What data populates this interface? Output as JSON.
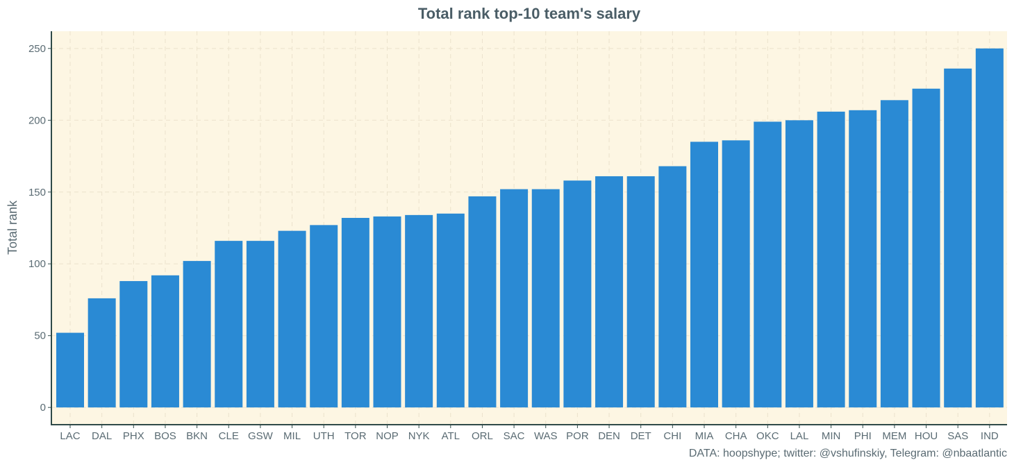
{
  "colors": {
    "panel_background": "#fdf6e3",
    "bar": "#2a8ad4",
    "axis": "#2f4a48",
    "text": "#5a6b73",
    "grid": "#ebe2cc"
  },
  "chart_data": {
    "type": "bar",
    "title": "Total rank top-10 team's salary",
    "xlabel": "",
    "ylabel": "Total rank",
    "caption": "DATA: hoopshype; twitter: @vshufinskiy, Telegram: @nbaatlantic",
    "ylim": [
      -12,
      262
    ],
    "yticks": [
      0,
      50,
      100,
      150,
      200,
      250
    ],
    "grid": true,
    "legend": "none",
    "categories": [
      "LAC",
      "DAL",
      "PHX",
      "BOS",
      "BKN",
      "CLE",
      "GSW",
      "MIL",
      "UTH",
      "TOR",
      "NOP",
      "NYK",
      "ATL",
      "ORL",
      "SAC",
      "WAS",
      "POR",
      "DEN",
      "DET",
      "CHI",
      "MIA",
      "CHA",
      "OKC",
      "LAL",
      "MIN",
      "PHI",
      "MEM",
      "HOU",
      "SAS",
      "IND"
    ],
    "values": [
      52,
      76,
      88,
      92,
      102,
      116,
      116,
      123,
      127,
      132,
      133,
      134,
      135,
      147,
      152,
      152,
      158,
      161,
      161,
      168,
      185,
      186,
      199,
      200,
      206,
      207,
      214,
      222,
      236,
      250
    ]
  }
}
